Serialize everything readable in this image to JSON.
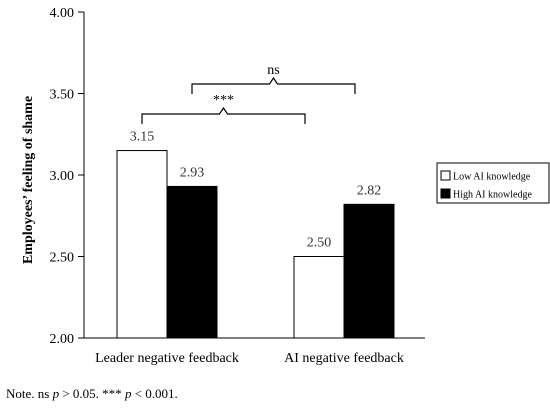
{
  "chart_data": {
    "type": "bar",
    "categories": [
      "Leader negative feedback",
      "AI negative feedback"
    ],
    "series": [
      {
        "name": "Low AI knowledge",
        "values": [
          3.15,
          2.5
        ],
        "fill": "#ffffff",
        "stroke": "#000000"
      },
      {
        "name": "High AI knowledge",
        "values": [
          2.93,
          2.82
        ],
        "fill": "#000000",
        "stroke": "#000000"
      }
    ],
    "data_labels": [
      "3.15",
      "2.50",
      "2.93",
      "2.82"
    ],
    "ylabel": "Employees’ feeling of shame",
    "xlabel": "",
    "ylim": [
      2.0,
      4.0
    ],
    "yticks": [
      "2.00",
      "2.50",
      "3.00",
      "3.50",
      "4.00"
    ],
    "grid": false,
    "legend_position": "right",
    "brackets": [
      {
        "from": "Leader negative feedback",
        "to": "AI negative feedback",
        "label": "***",
        "level": "lower"
      },
      {
        "from": "Leader negative feedback",
        "to": "AI negative feedback",
        "label": "ns",
        "level": "upper"
      }
    ]
  },
  "note": {
    "prefix": "Note. ns ",
    "p1": "p",
    "mid": " > 0.05. *** ",
    "p2": "p",
    "suffix": " < 0.001."
  }
}
